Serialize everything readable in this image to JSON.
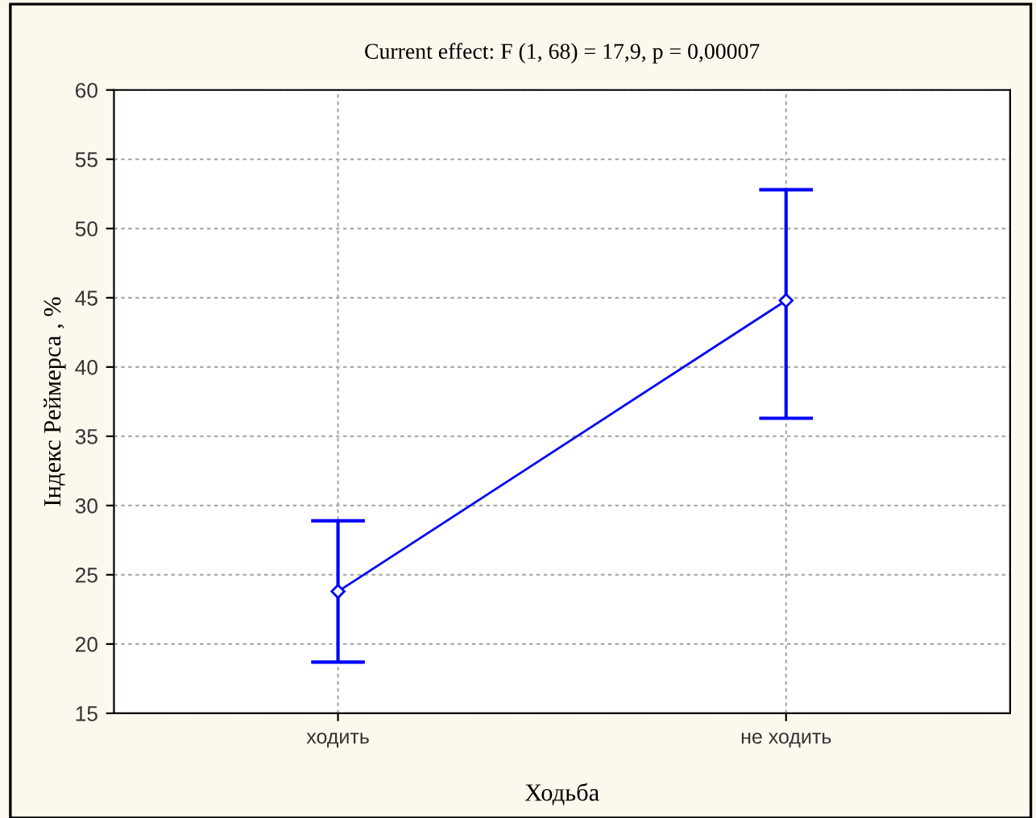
{
  "chart_data": {
    "type": "line",
    "title": "Current effect: F (1, 68) = 17,9, p = 0,00007",
    "xlabel": "Ходьба",
    "ylabel": "Індекс Реймерса , %",
    "categories": [
      "ходить",
      "не ходить"
    ],
    "series": [
      {
        "color": "#0000ff",
        "values": [
          23.8,
          44.8
        ],
        "errors": [
          [
            18.7,
            28.9
          ],
          [
            36.3,
            52.8
          ]
        ]
      }
    ],
    "ylim": [
      15,
      60
    ],
    "yticks": [
      15,
      20,
      25,
      30,
      35,
      40,
      45,
      50,
      55,
      60
    ],
    "grid": true,
    "marker": "diamond",
    "line_style": "solid"
  }
}
